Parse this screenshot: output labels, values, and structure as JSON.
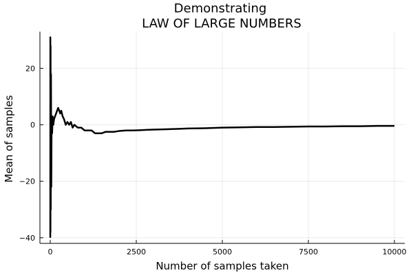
{
  "chart_data": {
    "type": "line",
    "title": [
      "Demonstrating",
      "LAW OF LARGE NUMBERS"
    ],
    "xlabel": "Number of samples taken",
    "ylabel": "Mean of samples",
    "xlim": [
      -300,
      10300
    ],
    "ylim": [
      -42,
      33
    ],
    "xticks": [
      0,
      2500,
      5000,
      7500,
      10000
    ],
    "xtick_labels": [
      "0",
      "2500",
      "5000",
      "7500",
      "10000"
    ],
    "yticks": [
      -40,
      -20,
      0,
      20
    ],
    "ytick_labels": [
      "−40",
      "−20",
      "0",
      "20"
    ],
    "grid": true,
    "legend": "none",
    "line_color": "#000000",
    "series": [
      {
        "x": [
          1,
          3,
          6,
          10,
          15,
          22,
          30,
          40,
          55,
          70,
          90,
          110,
          140,
          170,
          200,
          230,
          260,
          290,
          320,
          360,
          400,
          450,
          500,
          550,
          600,
          650,
          700,
          800,
          900,
          1000,
          1100,
          1200,
          1300,
          1400,
          1500,
          1600,
          1700,
          1850,
          2000,
          2200,
          2400,
          2600,
          2800,
          3000,
          3300,
          3600,
          4000,
          4500,
          5000,
          5500,
          6000,
          6500,
          7000,
          7500,
          8000,
          8500,
          9000,
          9500,
          10000
        ],
        "y": [
          -40,
          31,
          -38,
          28,
          -30,
          18,
          -22,
          2,
          -3,
          3,
          0,
          2,
          3,
          4,
          5,
          6,
          5,
          4,
          5,
          3,
          2,
          0,
          1,
          0,
          1,
          -1,
          0,
          -1,
          -1,
          -2,
          -2,
          -2,
          -3,
          -3,
          -3,
          -2.5,
          -2.5,
          -2.5,
          -2.2,
          -2,
          -2,
          -1.9,
          -1.8,
          -1.7,
          -1.6,
          -1.5,
          -1.3,
          -1.2,
          -1.0,
          -0.9,
          -0.8,
          -0.8,
          -0.7,
          -0.6,
          -0.6,
          -0.5,
          -0.5,
          -0.4,
          -0.4
        ]
      }
    ]
  }
}
